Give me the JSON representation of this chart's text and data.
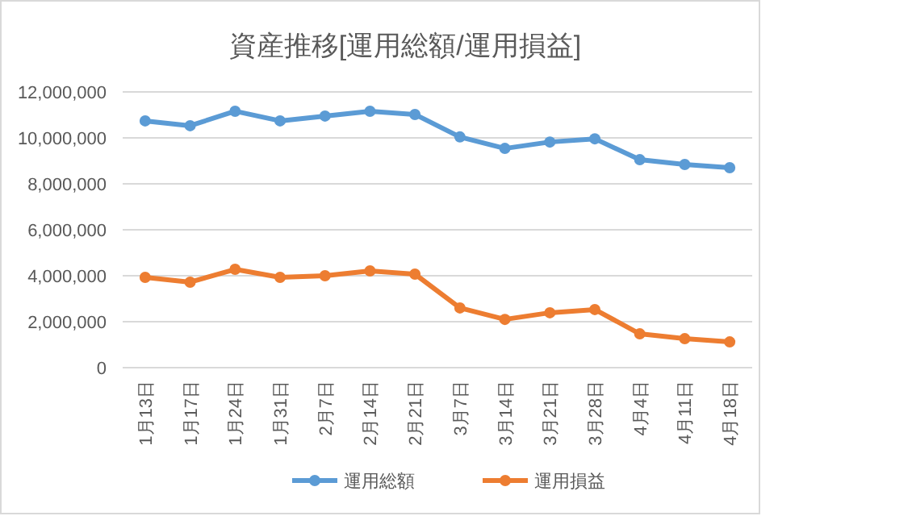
{
  "chart_data": {
    "type": "line",
    "title": "資産推移[運用総額/運用損益]",
    "categories": [
      "1月13日",
      "1月17日",
      "1月24日",
      "1月31日",
      "2月7日",
      "2月14日",
      "2月21日",
      "3月7日",
      "3月14日",
      "3月21日",
      "3月28日",
      "4月4日",
      "4月11日",
      "4月18日"
    ],
    "series": [
      {
        "name": "運用総額",
        "color": "#5b9bd5",
        "values": [
          10740000,
          10530000,
          11160000,
          10740000,
          10950000,
          11160000,
          11020000,
          10040000,
          9540000,
          9820000,
          9960000,
          9050000,
          8840000,
          8700000
        ]
      },
      {
        "name": "運用損益",
        "color": "#ed7d31",
        "values": [
          3930000,
          3720000,
          4280000,
          3930000,
          4000000,
          4210000,
          4070000,
          2600000,
          2100000,
          2390000,
          2530000,
          1470000,
          1260000,
          1120000
        ]
      }
    ],
    "ylim": [
      0,
      12000000
    ],
    "yticks": [
      {
        "value": 0,
        "label": "0"
      },
      {
        "value": 2000000,
        "label": "2,000,000"
      },
      {
        "value": 4000000,
        "label": "4,000,000"
      },
      {
        "value": 6000000,
        "label": "6,000,000"
      },
      {
        "value": 8000000,
        "label": "8,000,000"
      },
      {
        "value": 10000000,
        "label": "10,000,000"
      },
      {
        "value": 12000000,
        "label": "12,000,000"
      }
    ],
    "grid": "y",
    "legend": "bottom",
    "marker": "circle",
    "line_style": "solid"
  }
}
